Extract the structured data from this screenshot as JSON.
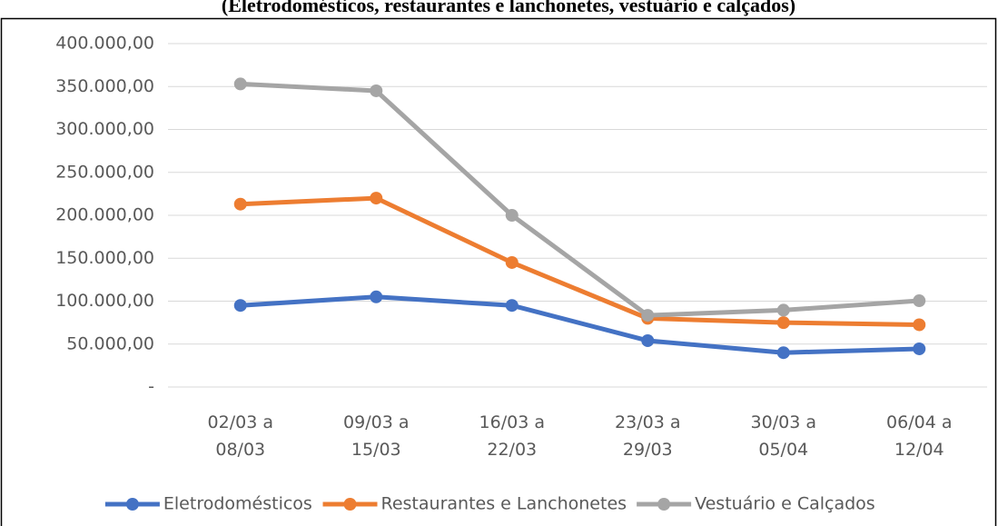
{
  "chart_data": {
    "type": "line",
    "title": "(Eletrodomésticos, restaurantes e lanchonetes, vestuário e calçados)",
    "categories": [
      "02/03 a\n08/03",
      "09/03 a\n15/03",
      "16/03 a\n22/03",
      "23/03 a\n29/03",
      "30/03 a\n05/04",
      "06/04 a\n12/04"
    ],
    "series": [
      {
        "name": "Eletrodomésticos",
        "color": "#4472c4",
        "values": [
          95000,
          105000,
          95000,
          54000,
          40000,
          44500
        ]
      },
      {
        "name": "Restaurantes e Lanchonetes",
        "color": "#ed7d31",
        "values": [
          213000,
          220000,
          145000,
          80000,
          75000,
          72500
        ]
      },
      {
        "name": "Vestuário e Calçados",
        "color": "#a5a5a5",
        "values": [
          353000,
          345000,
          200000,
          83500,
          89500,
          100500
        ]
      }
    ],
    "ylim": [
      0,
      400000
    ],
    "yticks": [
      {
        "value": 0,
        "label": "-"
      },
      {
        "value": 50000,
        "label": "50.000,00"
      },
      {
        "value": 100000,
        "label": "100.000,00"
      },
      {
        "value": 150000,
        "label": "150.000,00"
      },
      {
        "value": 200000,
        "label": "200.000,00"
      },
      {
        "value": 250000,
        "label": "250.000,00"
      },
      {
        "value": 300000,
        "label": "300.000,00"
      },
      {
        "value": 350000,
        "label": "350.000,00"
      },
      {
        "value": 400000,
        "label": "400.000,00"
      }
    ],
    "grid": true,
    "legend": "bottom"
  }
}
